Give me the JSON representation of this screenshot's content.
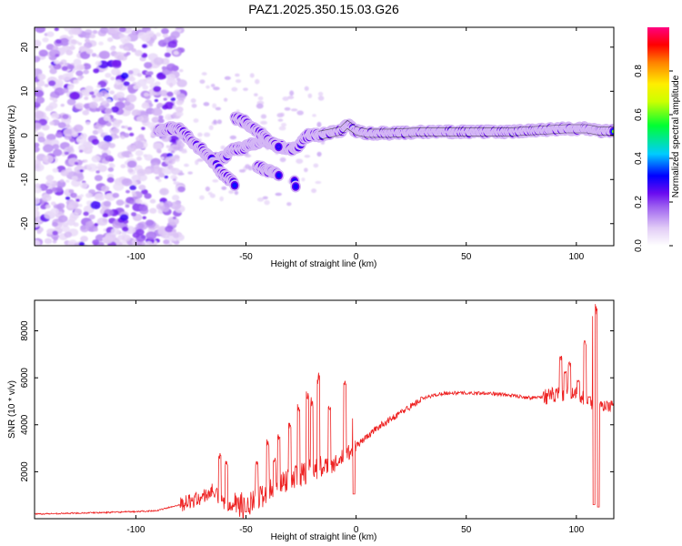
{
  "title": "PAZ1.2025.350.15.03.G26",
  "colors": {
    "snr_line": "#ee2222",
    "axis": "#000000",
    "plot_bg": "#ffffff"
  },
  "chart_data": [
    {
      "type": "heatmap",
      "name": "spectrogram",
      "xlabel": "Height of straight line (km)",
      "ylabel": "Frequency (Hz)",
      "xlim": [
        -146,
        117
      ],
      "ylim": [
        -25,
        24.5
      ],
      "xticks": [
        -100,
        -50,
        0,
        50,
        100
      ],
      "xtick_labels": [
        "-100",
        "-50",
        "0",
        "50",
        "100"
      ],
      "yticks": [
        -20,
        -10,
        0,
        10,
        20
      ],
      "ytick_labels": [
        "-20",
        "-10",
        "0",
        "10",
        "20"
      ],
      "ridge": [
        [
          -90,
          1
        ],
        [
          -85,
          1.5
        ],
        [
          -80,
          1.5
        ],
        [
          -75,
          -1
        ],
        [
          -70,
          -3.5
        ],
        [
          -65,
          -5.5
        ],
        [
          -60,
          -5
        ],
        [
          -56,
          -3
        ],
        [
          -52,
          -3
        ],
        [
          -47,
          -2
        ],
        [
          -42,
          -1
        ],
        [
          -37,
          -2
        ],
        [
          -32,
          -3
        ],
        [
          -27,
          -3
        ],
        [
          -22,
          0
        ],
        [
          -17,
          0
        ],
        [
          -12,
          0.5
        ],
        [
          -7,
          1
        ],
        [
          -4,
          2.5
        ],
        [
          0,
          1
        ],
        [
          5,
          0.5
        ],
        [
          15,
          0.5
        ],
        [
          30,
          0.8
        ],
        [
          50,
          0.8
        ],
        [
          70,
          0.8
        ],
        [
          85,
          1.2
        ],
        [
          95,
          1.5
        ],
        [
          105,
          1.5
        ],
        [
          110,
          1
        ],
        [
          117,
          1
        ]
      ],
      "branches": [
        [
          [
            -55,
            4
          ],
          [
            -50,
            3
          ],
          [
            -45,
            1
          ],
          [
            -40,
            -1
          ],
          [
            -35,
            -3
          ]
        ],
        [
          [
            -45,
            -7
          ],
          [
            -40,
            -8
          ],
          [
            -35,
            -9
          ]
        ],
        [
          [
            -70,
            -3
          ],
          [
            -65,
            -6
          ],
          [
            -60,
            -9
          ],
          [
            -55,
            -11
          ]
        ],
        [
          [
            -28,
            -10
          ],
          [
            -27,
            -12.5
          ]
        ]
      ],
      "noise_region": [
        -146,
        -85
      ],
      "colorbar": {
        "label": "Normalized spectral amplitude",
        "range": [
          0,
          1
        ],
        "ticks": [
          0.0,
          0.2,
          0.4,
          0.6,
          0.8
        ],
        "tick_labels": [
          "0.0",
          "0.2",
          "0.4",
          "0.6",
          "0.8"
        ],
        "colormap": [
          [
            0.0,
            "#ffffff"
          ],
          [
            0.08,
            "#e2cdf6"
          ],
          [
            0.18,
            "#9c5ef0"
          ],
          [
            0.24,
            "#6a0bf0"
          ],
          [
            0.32,
            "#0000ff"
          ],
          [
            0.42,
            "#00ccff"
          ],
          [
            0.55,
            "#00ff33"
          ],
          [
            0.66,
            "#ccff00"
          ],
          [
            0.74,
            "#ffee00"
          ],
          [
            0.84,
            "#ff8000"
          ],
          [
            0.92,
            "#ff0000"
          ],
          [
            1.0,
            "#ff0080"
          ]
        ]
      }
    },
    {
      "type": "line",
      "name": "snr",
      "xlabel": "Height of straight line (km)",
      "ylabel": "SNR (10 * v/v)",
      "xlim": [
        -146,
        117
      ],
      "ylim": [
        0,
        9300
      ],
      "xticks": [
        -100,
        -50,
        0,
        50,
        100
      ],
      "xtick_labels": [
        "-100",
        "-50",
        "0",
        "50",
        "100"
      ],
      "yticks": [
        2000,
        4000,
        6000,
        8000
      ],
      "ytick_labels": [
        "2000",
        "4000",
        "6000",
        "8000"
      ],
      "envelope": [
        [
          -146,
          200
        ],
        [
          -120,
          250
        ],
        [
          -100,
          300
        ],
        [
          -90,
          350
        ],
        [
          -80,
          600
        ],
        [
          -70,
          900
        ],
        [
          -65,
          1200
        ],
        [
          -60,
          600
        ],
        [
          -55,
          700
        ],
        [
          -50,
          500
        ],
        [
          -45,
          800
        ],
        [
          -40,
          1200
        ],
        [
          -35,
          1600
        ],
        [
          -30,
          1700
        ],
        [
          -25,
          1900
        ],
        [
          -20,
          2100
        ],
        [
          -15,
          2200
        ],
        [
          -10,
          2300
        ],
        [
          -5,
          2700
        ],
        [
          0,
          3100
        ],
        [
          5,
          3500
        ],
        [
          10,
          3900
        ],
        [
          15,
          4200
        ],
        [
          20,
          4500
        ],
        [
          25,
          4800
        ],
        [
          30,
          5100
        ],
        [
          35,
          5250
        ],
        [
          40,
          5350
        ],
        [
          50,
          5350
        ],
        [
          60,
          5350
        ],
        [
          70,
          5250
        ],
        [
          80,
          5150
        ],
        [
          90,
          5250
        ],
        [
          100,
          5300
        ],
        [
          105,
          5100
        ],
        [
          108,
          4700
        ],
        [
          112,
          4800
        ],
        [
          117,
          4800
        ]
      ],
      "spikes": [
        [
          -62,
          2800
        ],
        [
          -59,
          2500
        ],
        [
          -45,
          2500
        ],
        [
          -40,
          3400
        ],
        [
          -37,
          2600
        ],
        [
          -35,
          3600
        ],
        [
          -30,
          4200
        ],
        [
          -26,
          5000
        ],
        [
          -22,
          5600
        ],
        [
          -20,
          5200
        ],
        [
          -17,
          6300
        ],
        [
          -12,
          5000
        ],
        [
          -5,
          6000
        ],
        [
          -1,
          4300
        ],
        [
          93,
          7000
        ],
        [
          95,
          6300
        ],
        [
          97,
          6700
        ],
        [
          101,
          5900
        ],
        [
          104,
          7600
        ],
        [
          106,
          5200
        ],
        [
          108,
          9000
        ],
        [
          109,
          9300
        ],
        [
          110,
          6600
        ]
      ],
      "dips": [
        [
          -50,
          300
        ],
        [
          -1,
          1050
        ],
        [
          108,
          600
        ],
        [
          110,
          500
        ]
      ]
    }
  ]
}
